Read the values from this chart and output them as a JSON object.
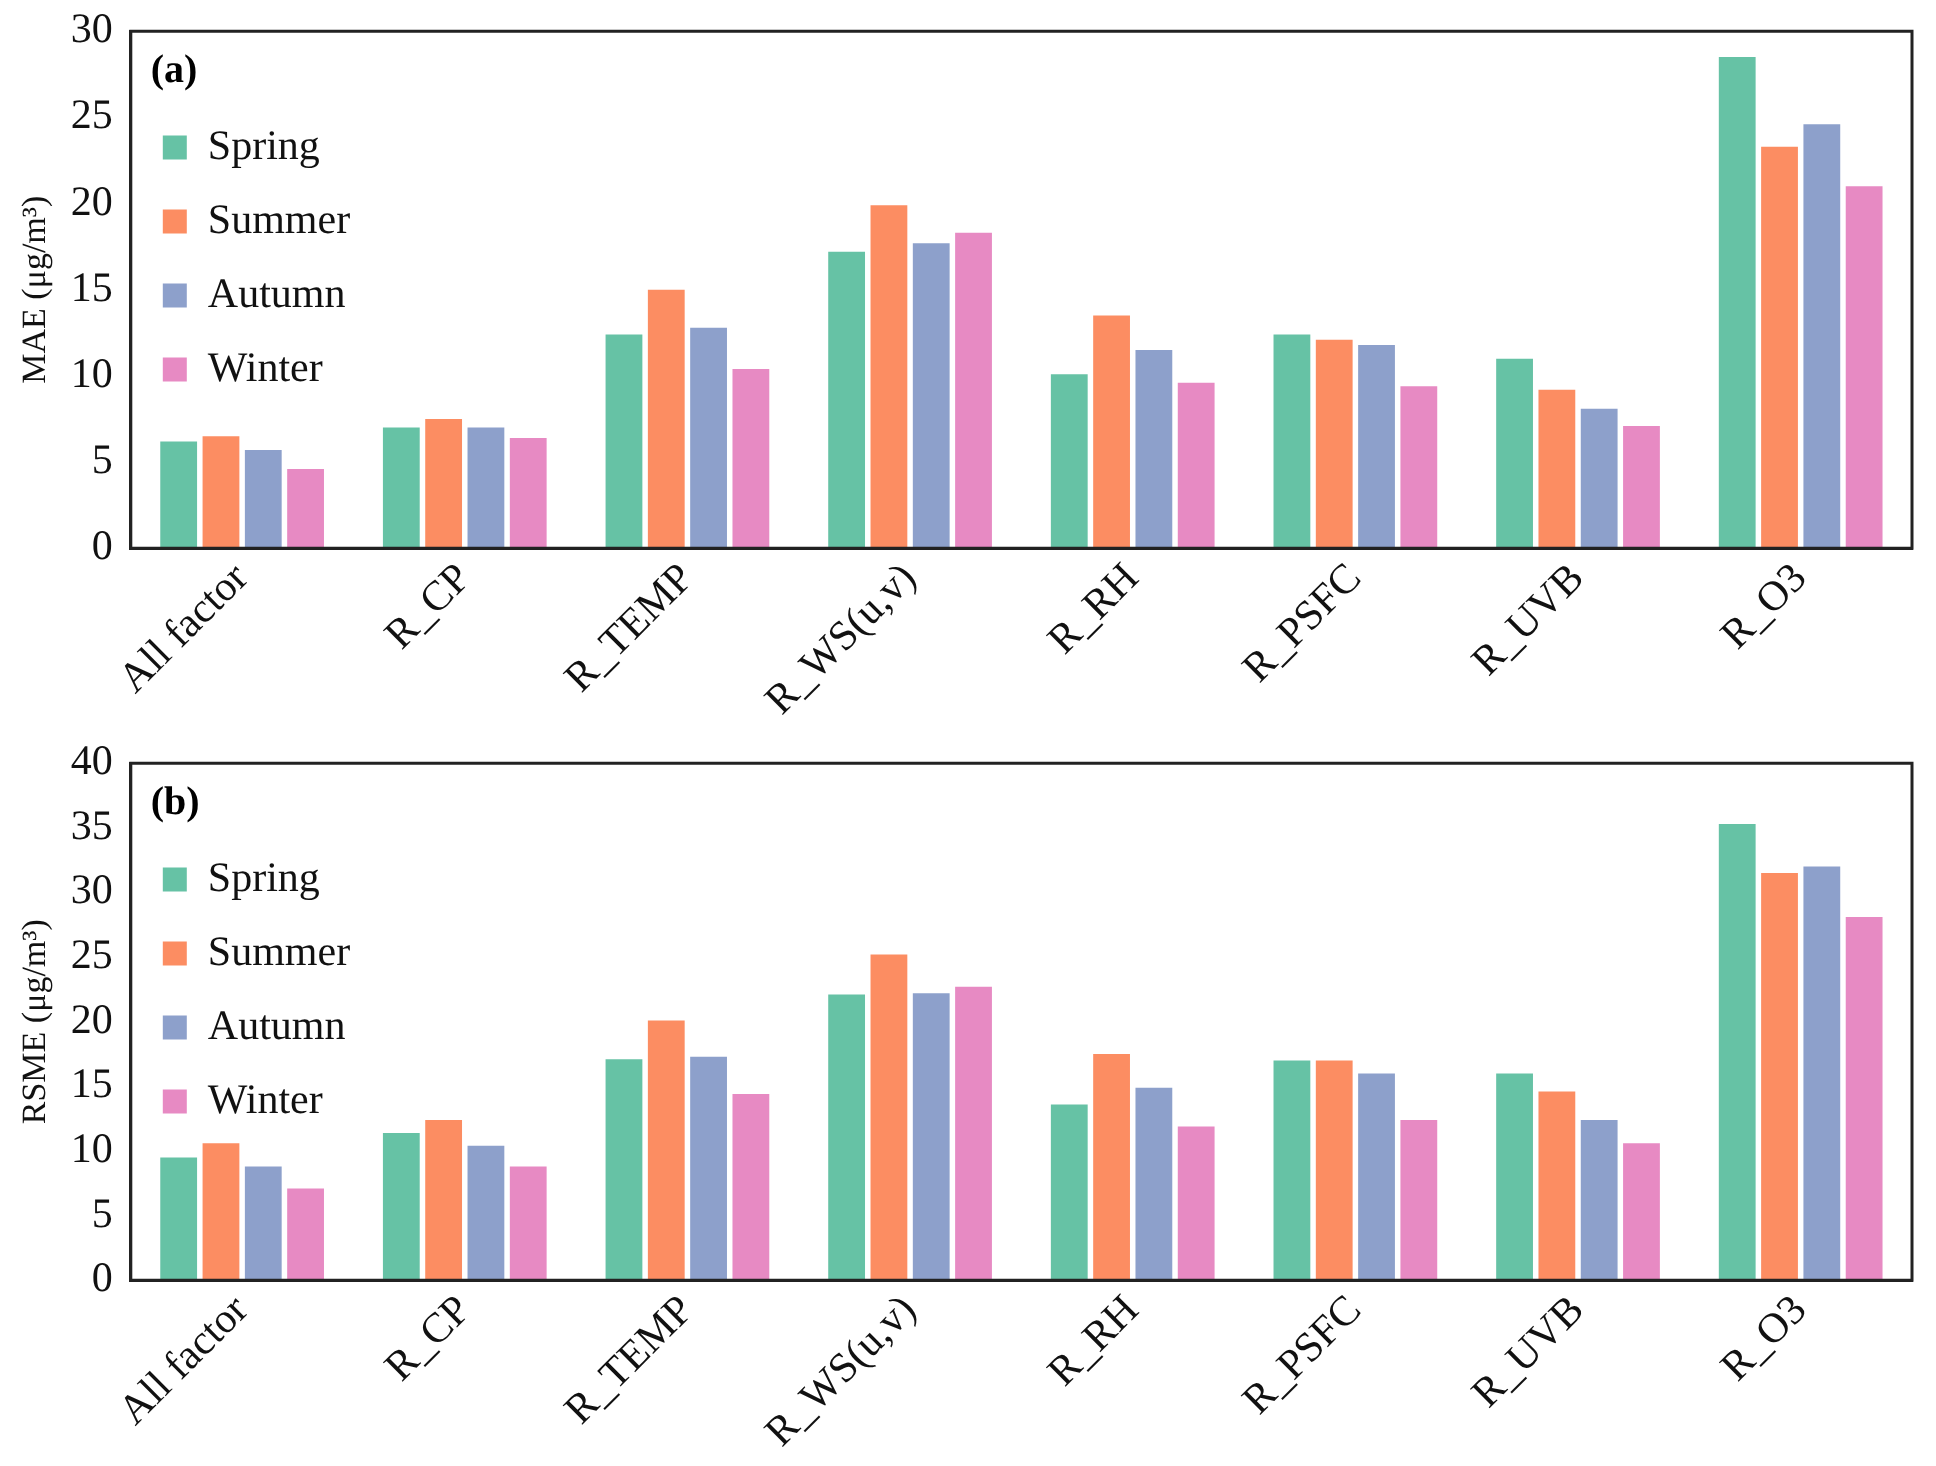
{
  "chart_data": [
    {
      "type": "bar",
      "ylabel": "MAE (μg/m³)",
      "annotations": [
        "(a)"
      ],
      "legend": "top",
      "grid": false,
      "categories": [
        "All factor",
        "R_CP",
        "R_TEMP",
        "R_WS(u,v)",
        "R_RH",
        "R_PSFC",
        "R_UVB",
        "R_O3"
      ],
      "ylim": [
        0,
        30
      ],
      "yticks": [
        0,
        5,
        10,
        15,
        20,
        25,
        30
      ],
      "series": [
        {
          "name": "Spring",
          "color": "#66c2a5",
          "values": [
            6.2,
            7.0,
            12.4,
            17.2,
            10.1,
            12.4,
            11.0,
            28.5
          ]
        },
        {
          "name": "Summer",
          "color": "#fc8d62",
          "values": [
            6.5,
            7.5,
            15.0,
            19.9,
            13.5,
            12.1,
            9.2,
            23.3
          ]
        },
        {
          "name": "Autumn",
          "color": "#8da0cb",
          "values": [
            5.7,
            7.0,
            12.8,
            17.7,
            11.5,
            11.8,
            8.1,
            24.6
          ]
        },
        {
          "name": "Winter",
          "color": "#e78ac3",
          "values": [
            4.6,
            6.4,
            10.4,
            18.3,
            9.6,
            9.4,
            7.1,
            21.0
          ]
        }
      ]
    },
    {
      "type": "bar",
      "ylabel": "RSME (μg/m³)",
      "annotations": [
        "(b)"
      ],
      "legend": "top",
      "grid": false,
      "categories": [
        "All factor",
        "R_CP",
        "R_TEMP",
        "R_WS(u,v)",
        "R_RH",
        "R_PSFC",
        "R_UVB",
        "R_O3"
      ],
      "ylim": [
        0,
        40
      ],
      "yticks": [
        0,
        5,
        10,
        15,
        20,
        25,
        30,
        35,
        40
      ],
      "series": [
        {
          "name": "Spring",
          "color": "#66c2a5",
          "values": [
            9.5,
            11.4,
            17.1,
            22.1,
            13.6,
            17.0,
            16.0,
            35.3
          ]
        },
        {
          "name": "Summer",
          "color": "#fc8d62",
          "values": [
            10.6,
            12.4,
            20.1,
            25.2,
            17.5,
            17.0,
            14.6,
            31.5
          ]
        },
        {
          "name": "Autumn",
          "color": "#8da0cb",
          "values": [
            8.8,
            10.4,
            17.3,
            22.2,
            14.9,
            16.0,
            12.4,
            32.0
          ]
        },
        {
          "name": "Winter",
          "color": "#e78ac3",
          "values": [
            7.1,
            8.8,
            14.4,
            22.7,
            11.9,
            12.4,
            10.6,
            28.1
          ]
        }
      ]
    }
  ]
}
